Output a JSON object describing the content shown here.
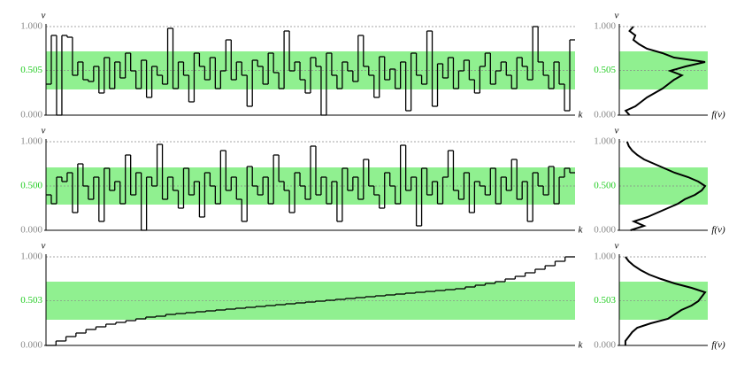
{
  "chart_data": [
    {
      "type": "step",
      "ylabel": "v",
      "xlabel": "k",
      "ylim": [
        0,
        1
      ],
      "band": [
        0.29,
        0.72
      ],
      "band_color": "#90f090",
      "yticks": [
        {
          "value": 0,
          "label": "0.000"
        },
        {
          "value": 0.505,
          "label": "0.505"
        },
        {
          "value": 1,
          "label": "1.000"
        }
      ],
      "values": [
        0.35,
        0.9,
        0.0,
        0.9,
        0.88,
        0.45,
        0.6,
        0.4,
        0.38,
        0.55,
        0.25,
        0.65,
        0.3,
        0.6,
        0.42,
        0.7,
        0.5,
        0.3,
        0.62,
        0.2,
        0.55,
        0.45,
        0.35,
        0.98,
        0.3,
        0.6,
        0.45,
        0.15,
        0.7,
        0.55,
        0.4,
        0.65,
        0.3,
        0.5,
        0.85,
        0.4,
        0.6,
        0.45,
        0.1,
        0.62,
        0.55,
        0.35,
        0.7,
        0.48,
        0.3,
        0.95,
        0.5,
        0.6,
        0.4,
        0.25,
        0.65,
        0.55,
        0.0,
        0.7,
        0.45,
        0.3,
        0.6,
        0.5,
        0.38,
        0.9,
        0.55,
        0.45,
        0.2,
        0.66,
        0.4,
        0.52,
        0.3,
        0.6,
        0.05,
        0.7,
        0.45,
        0.35,
        0.95,
        0.1,
        0.58,
        0.42,
        0.65,
        0.3,
        0.5,
        0.62,
        0.4,
        0.25,
        0.55,
        0.7,
        0.35,
        0.5,
        0.6,
        0.45,
        0.3,
        0.65,
        0.55,
        0.4,
        1.0,
        0.6,
        0.45,
        0.3,
        0.6,
        0.35,
        0.05,
        0.85
      ]
    },
    {
      "type": "density",
      "xlabel": "f(v)",
      "ylabel": "v",
      "ylim": [
        0,
        1
      ],
      "band": [
        0.29,
        0.72
      ],
      "band_color": "#90f090",
      "yticks": [
        {
          "value": 0,
          "label": "0.000"
        },
        {
          "value": 0.505,
          "label": "0.505"
        },
        {
          "value": 1,
          "label": "1.000"
        }
      ],
      "v": [
        0,
        0.05,
        0.1,
        0.15,
        0.2,
        0.25,
        0.3,
        0.35,
        0.4,
        0.45,
        0.5,
        0.55,
        0.6,
        0.65,
        0.7,
        0.75,
        0.8,
        0.85,
        0.9,
        0.95,
        1
      ],
      "values": [
        0.3,
        0.1,
        0.6,
        0.9,
        1.2,
        1.6,
        2.0,
        2.3,
        2.6,
        3.0,
        2.4,
        3.2,
        4.2,
        2.6,
        2.0,
        1.2,
        0.8,
        0.5,
        0.6,
        0.3,
        0.5
      ]
    },
    {
      "type": "step",
      "ylabel": "v",
      "xlabel": "k",
      "ylim": [
        0,
        1
      ],
      "band": [
        0.29,
        0.71
      ],
      "band_color": "#90f090",
      "yticks": [
        {
          "value": 0,
          "label": "0.000"
        },
        {
          "value": 0.5,
          "label": "0.500"
        },
        {
          "value": 1,
          "label": "1.000"
        }
      ],
      "values": [
        0.4,
        0.3,
        0.6,
        0.55,
        0.65,
        0.2,
        0.75,
        0.5,
        0.35,
        0.6,
        0.1,
        0.7,
        0.45,
        0.55,
        0.3,
        0.85,
        0.4,
        0.65,
        0.0,
        0.6,
        0.5,
        0.97,
        0.35,
        0.6,
        0.45,
        0.25,
        0.7,
        0.4,
        0.55,
        0.15,
        0.65,
        0.5,
        0.3,
        0.9,
        0.45,
        0.6,
        0.35,
        0.1,
        0.72,
        0.5,
        0.4,
        0.6,
        0.3,
        0.85,
        0.55,
        0.45,
        0.2,
        0.65,
        0.5,
        0.35,
        0.95,
        0.4,
        0.6,
        0.3,
        0.55,
        0.1,
        0.7,
        0.45,
        0.6,
        0.35,
        0.8,
        0.5,
        0.4,
        0.25,
        0.65,
        0.5,
        0.3,
        0.96,
        0.45,
        0.6,
        0.05,
        0.7,
        0.4,
        0.55,
        0.3,
        0.6,
        0.9,
        0.45,
        0.35,
        0.65,
        0.2,
        0.55,
        0.5,
        0.4,
        0.7,
        0.3,
        0.6,
        0.45,
        0.8,
        0.35,
        0.55,
        0.1,
        0.65,
        0.5,
        0.4,
        0.72,
        0.3,
        0.6,
        0.7,
        0.65
      ]
    },
    {
      "type": "density",
      "xlabel": "f(v)",
      "ylabel": "v",
      "ylim": [
        0,
        1
      ],
      "band": [
        0.29,
        0.71
      ],
      "band_color": "#90f090",
      "yticks": [
        {
          "value": 0,
          "label": "0.000"
        },
        {
          "value": 0.5,
          "label": "0.500"
        },
        {
          "value": 1,
          "label": "1.000"
        }
      ],
      "v": [
        0,
        0.05,
        0.1,
        0.15,
        0.2,
        0.25,
        0.3,
        0.35,
        0.4,
        0.45,
        0.5,
        0.55,
        0.6,
        0.65,
        0.7,
        0.75,
        0.8,
        0.85,
        0.9,
        0.95,
        1
      ],
      "values": [
        0.4,
        1.2,
        0.6,
        1.4,
        2.0,
        2.6,
        3.2,
        3.6,
        4.2,
        4.6,
        4.8,
        4.4,
        3.8,
        3.0,
        2.4,
        1.8,
        1.2,
        0.8,
        0.5,
        0.3,
        0.2
      ]
    },
    {
      "type": "step",
      "ylabel": "v",
      "xlabel": "k",
      "ylim": [
        0,
        1
      ],
      "band": [
        0.29,
        0.72
      ],
      "band_color": "#90f090",
      "yticks": [
        {
          "value": 0,
          "label": "0.000"
        },
        {
          "value": 0.503,
          "label": "0.503"
        },
        {
          "value": 1,
          "label": "1.000"
        }
      ],
      "values": [
        0.0,
        0.05,
        0.1,
        0.14,
        0.18,
        0.21,
        0.24,
        0.26,
        0.28,
        0.3,
        0.32,
        0.33,
        0.35,
        0.36,
        0.37,
        0.38,
        0.39,
        0.4,
        0.41,
        0.42,
        0.43,
        0.44,
        0.45,
        0.46,
        0.47,
        0.48,
        0.49,
        0.5,
        0.51,
        0.52,
        0.53,
        0.54,
        0.55,
        0.56,
        0.57,
        0.58,
        0.59,
        0.6,
        0.61,
        0.62,
        0.63,
        0.64,
        0.66,
        0.68,
        0.7,
        0.72,
        0.75,
        0.78,
        0.82,
        0.86,
        0.9,
        0.95,
        1.0
      ]
    },
    {
      "type": "density",
      "xlabel": "f(v)",
      "ylabel": "v",
      "ylim": [
        0,
        1
      ],
      "band": [
        0.29,
        0.72
      ],
      "band_color": "#90f090",
      "yticks": [
        {
          "value": 0,
          "label": "0.000"
        },
        {
          "value": 0.503,
          "label": "0.503"
        },
        {
          "value": 1,
          "label": "1.000"
        }
      ],
      "v": [
        0,
        0.05,
        0.1,
        0.15,
        0.2,
        0.25,
        0.3,
        0.35,
        0.4,
        0.45,
        0.5,
        0.55,
        0.6,
        0.65,
        0.7,
        0.75,
        0.8,
        0.85,
        0.9,
        0.95,
        1
      ],
      "values": [
        0.1,
        0.1,
        0.3,
        0.5,
        0.8,
        1.6,
        2.6,
        3.0,
        3.4,
        4.0,
        4.4,
        4.6,
        4.8,
        4.0,
        3.0,
        2.2,
        1.5,
        1.0,
        0.6,
        0.3,
        0.1
      ]
    }
  ]
}
